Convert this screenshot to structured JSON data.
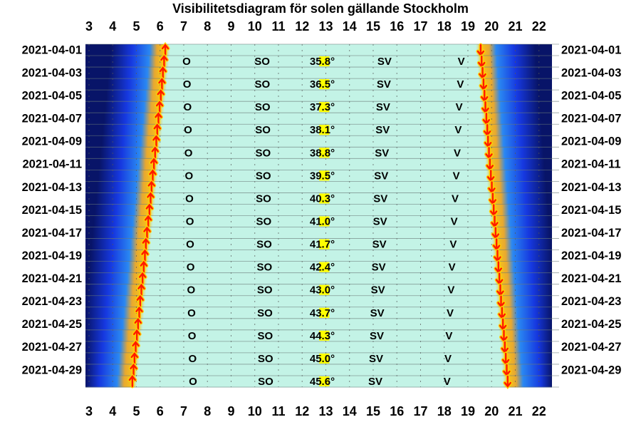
{
  "chart_data": {
    "type": "visibility",
    "title": "Visibilitetsdiagram för solen gällande Stockholm",
    "xlim": [
      2.85,
      22.55
    ],
    "xticks": [
      3,
      4,
      5,
      6,
      7,
      8,
      9,
      10,
      11,
      12,
      13,
      14,
      15,
      16,
      17,
      18,
      19,
      20,
      21,
      22
    ],
    "categories": [
      "2021-04-01",
      null,
      "2021-04-03",
      null,
      "2021-04-05",
      null,
      "2021-04-07",
      null,
      "2021-04-09",
      null,
      "2021-04-11",
      null,
      "2021-04-13",
      null,
      "2021-04-15",
      null,
      "2021-04-17",
      null,
      "2021-04-19",
      null,
      "2021-04-21",
      null,
      "2021-04-23",
      null,
      "2021-04-25",
      null,
      "2021-04-27",
      null,
      "2021-04-29",
      null
    ],
    "sunrise": [
      6.22,
      6.17,
      6.12,
      6.08,
      6.03,
      5.98,
      5.93,
      5.88,
      5.84,
      5.79,
      5.74,
      5.69,
      5.64,
      5.6,
      5.55,
      5.5,
      5.45,
      5.4,
      5.36,
      5.31,
      5.26,
      5.21,
      5.16,
      5.12,
      5.07,
      5.02,
      4.97,
      4.92,
      4.88,
      4.83
    ],
    "sunset": [
      19.54,
      19.58,
      19.62,
      19.66,
      19.7,
      19.74,
      19.78,
      19.82,
      19.85,
      19.89,
      19.93,
      19.97,
      20.01,
      20.05,
      20.09,
      20.13,
      20.17,
      20.21,
      20.25,
      20.29,
      20.33,
      20.37,
      20.4,
      20.44,
      20.48,
      20.52,
      20.56,
      20.6,
      20.64,
      20.68
    ],
    "directions": [
      {
        "label": "O",
        "times": [
          null,
          7.12,
          null,
          7.14,
          null,
          7.16,
          null,
          7.18,
          null,
          7.2,
          null,
          7.22,
          null,
          7.24,
          null,
          7.26,
          null,
          7.27,
          null,
          7.29,
          null,
          7.31,
          null,
          7.33,
          null,
          7.35,
          null,
          7.37,
          null,
          7.39
        ]
      },
      {
        "label": "SO",
        "times": [
          null,
          10.31,
          null,
          10.32,
          null,
          10.33,
          null,
          10.34,
          null,
          10.35,
          null,
          10.36,
          null,
          10.37,
          null,
          10.38,
          null,
          10.4,
          null,
          10.41,
          null,
          10.42,
          null,
          10.43,
          null,
          10.44,
          null,
          10.45,
          null,
          10.46
        ]
      },
      {
        "label": "SV",
        "times": [
          null,
          15.48,
          null,
          15.45,
          null,
          15.42,
          null,
          15.4,
          null,
          15.37,
          null,
          15.34,
          null,
          15.31,
          null,
          15.29,
          null,
          15.26,
          null,
          15.23,
          null,
          15.2,
          null,
          15.17,
          null,
          15.15,
          null,
          15.12,
          null,
          15.09
        ]
      },
      {
        "label": "V",
        "times": [
          null,
          18.72,
          null,
          18.68,
          null,
          18.63,
          null,
          18.59,
          null,
          18.55,
          null,
          18.51,
          null,
          18.46,
          null,
          18.42,
          null,
          18.38,
          null,
          18.33,
          null,
          18.29,
          null,
          18.25,
          null,
          18.2,
          null,
          18.16,
          null,
          18.12
        ]
      }
    ],
    "noon_elevation": {
      "values": [
        null,
        35.8,
        null,
        36.5,
        null,
        37.3,
        null,
        38.1,
        null,
        38.8,
        null,
        39.5,
        null,
        40.3,
        null,
        41.0,
        null,
        41.7,
        null,
        42.4,
        null,
        43.0,
        null,
        43.7,
        null,
        44.3,
        null,
        45.0,
        null,
        45.6
      ],
      "value_labels": [
        null,
        "35.8°",
        null,
        "36.5°",
        null,
        "37.3°",
        null,
        "38.1°",
        null,
        "38.8°",
        null,
        "39.5°",
        null,
        "40.3°",
        null,
        "41.0°",
        null,
        "41.7°",
        null,
        "42.4°",
        null,
        "43.0°",
        null,
        "43.7°",
        null,
        "44.3°",
        null,
        "45.0°",
        null,
        "45.6°"
      ]
    },
    "day_color": "#c3f3e6",
    "arrow_color": "#ff1a00"
  }
}
